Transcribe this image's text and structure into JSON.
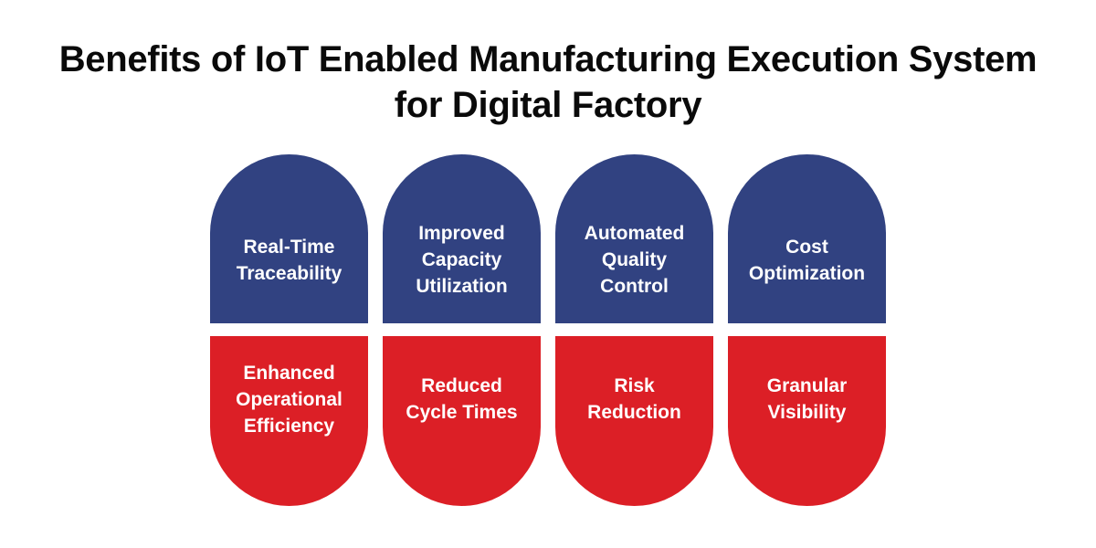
{
  "title": {
    "line1": "Benefits of IoT Enabled Manufacturing Execution System",
    "line2": "for Digital Factory"
  },
  "colors": {
    "top": "#314281",
    "bottom": "#dc1f26",
    "title": "#0a0a0a"
  },
  "pills": [
    {
      "top": "Real-Time\nTraceability",
      "bottom": "Enhanced\nOperational\nEfficiency"
    },
    {
      "top": "Improved\nCapacity\nUtilization",
      "bottom": "Reduced\nCycle Times"
    },
    {
      "top": "Automated\nQuality\nControl",
      "bottom": "Risk\nReduction"
    },
    {
      "top": "Cost\nOptimization",
      "bottom": "Granular\nVisibility"
    }
  ]
}
